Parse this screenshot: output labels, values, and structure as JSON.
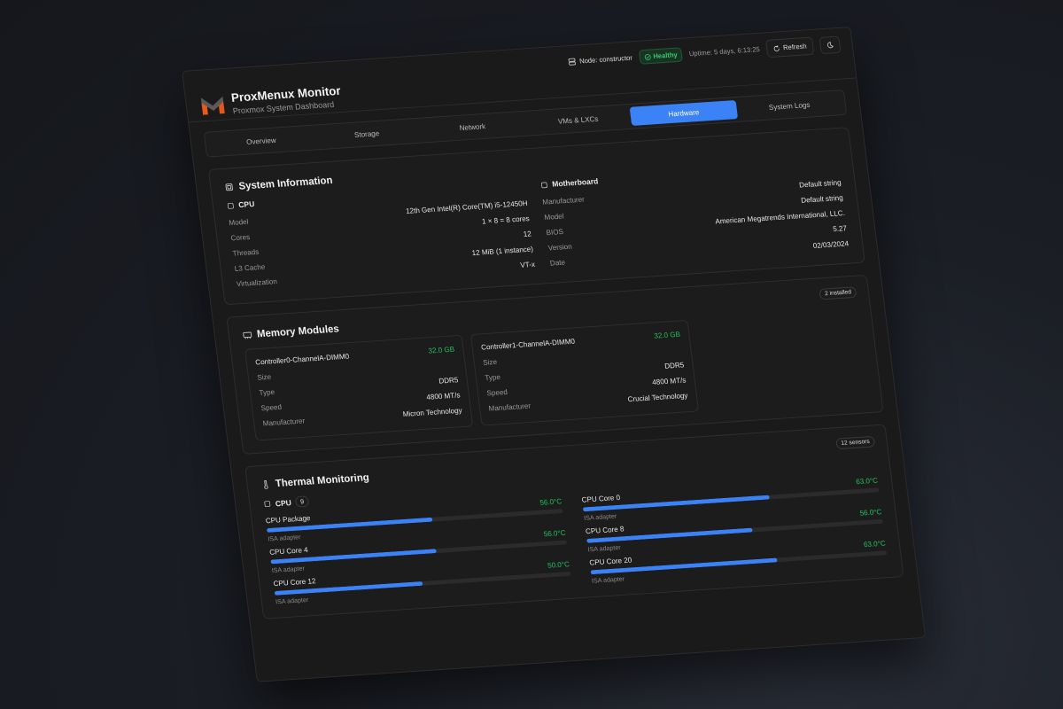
{
  "header": {
    "title": "ProxMenux Monitor",
    "subtitle": "Proxmox System Dashboard",
    "node": "Node: constructor",
    "health": "Healthy",
    "uptime": "Uptime: 5 days, 6:13:25",
    "refresh": "Refresh"
  },
  "tabs": [
    {
      "label": "Overview"
    },
    {
      "label": "Storage"
    },
    {
      "label": "Network"
    },
    {
      "label": "VMs & LXCs"
    },
    {
      "label": "Hardware",
      "active": true
    },
    {
      "label": "System Logs"
    }
  ],
  "system": {
    "title": "System Information",
    "cpu": {
      "title": "CPU",
      "rows": [
        {
          "label": "Model",
          "value": "12th Gen Intel(R) Core(TM) i5-12450H"
        },
        {
          "label": "Cores",
          "value": "1 × 8 = 8 cores"
        },
        {
          "label": "Threads",
          "value": "12"
        },
        {
          "label": "L3 Cache",
          "value": "12 MiB (1 instance)"
        },
        {
          "label": "Virtualization",
          "value": "VT-x"
        }
      ]
    },
    "motherboard": {
      "title": "Motherboard",
      "rows": [
        {
          "label": "Manufacturer",
          "value": "Default string"
        },
        {
          "label": "Model",
          "value": "Default string"
        },
        {
          "label": "BIOS",
          "value": "American Megatrends International, LLC."
        },
        {
          "label": "Version",
          "value": "5.27"
        },
        {
          "label": "Date",
          "value": "02/03/2024"
        }
      ]
    }
  },
  "memory": {
    "title": "Memory Modules",
    "badge": "2 installed",
    "modules": [
      {
        "name": "Controller0-ChannelA-DIMM0",
        "rows": [
          {
            "label": "Size",
            "value": "32.0 GB"
          },
          {
            "label": "Type",
            "value": "DDR5"
          },
          {
            "label": "Speed",
            "value": "4800 MT/s"
          },
          {
            "label": "Manufacturer",
            "value": "Micron Technology"
          }
        ]
      },
      {
        "name": "Controller1-ChannelA-DIMM0",
        "rows": [
          {
            "label": "Size",
            "value": "32.0 GB"
          },
          {
            "label": "Type",
            "value": "DDR5"
          },
          {
            "label": "Speed",
            "value": "4800 MT/s"
          },
          {
            "label": "Manufacturer",
            "value": "Crucial Technology"
          }
        ]
      }
    ]
  },
  "thermal": {
    "title": "Thermal Monitoring",
    "badge": "12 sensors",
    "group": "CPU",
    "group_count": "9",
    "sensors": [
      {
        "name": "CPU Package",
        "temp": "56.0°C",
        "value": 56,
        "adapter": "ISA adapter"
      },
      {
        "name": "CPU Core 0",
        "temp": "63.0°C",
        "value": 63,
        "adapter": "ISA adapter"
      },
      {
        "name": "CPU Core 4",
        "temp": "56.0°C",
        "value": 56,
        "adapter": "ISA adapter"
      },
      {
        "name": "CPU Core 8",
        "temp": "56.0°C",
        "value": 56,
        "adapter": "ISA adapter"
      },
      {
        "name": "CPU Core 12",
        "temp": "50.0°C",
        "value": 50,
        "adapter": "ISA adapter"
      },
      {
        "name": "CPU Core 20",
        "temp": "63.0°C",
        "value": 63,
        "adapter": "ISA adapter"
      }
    ]
  },
  "colors": {
    "accent": "#3b82f6",
    "healthy": "#22c55e"
  }
}
